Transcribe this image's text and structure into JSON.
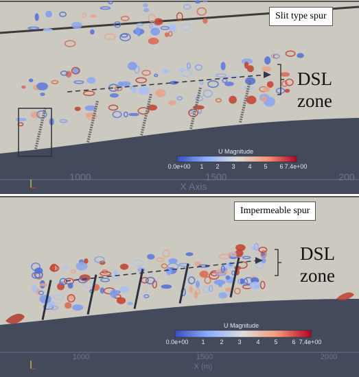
{
  "top_panel": {
    "label": "Slit type spur",
    "zone_line1": "DSL",
    "zone_line2": "zone",
    "colorbar_title": "U Magnitude",
    "colorbar_ticks": [
      "0.0e+00",
      "1",
      "2",
      "3",
      "4",
      "5",
      "6",
      "7.4e+00"
    ],
    "axis_ticks": [
      "1000",
      "1500",
      "200"
    ],
    "axis_title": "X Axis"
  },
  "bottom_panel": {
    "label": "Impermeable spur",
    "zone_line1": "DSL",
    "zone_line2": "zone",
    "colorbar_title": "U Magnitude",
    "colorbar_ticks": [
      "0.0e+00",
      "1",
      "2",
      "3",
      "4",
      "5",
      "6",
      "7.4e+00"
    ],
    "axis_ticks": [
      "1000",
      "1500",
      "2000"
    ],
    "axis_title": "X (m)"
  },
  "colors": {
    "background": "#ccc9c1",
    "bed": "#434a5b",
    "low_velocity": "#3b4cc0",
    "high_velocity": "#b40426"
  }
}
